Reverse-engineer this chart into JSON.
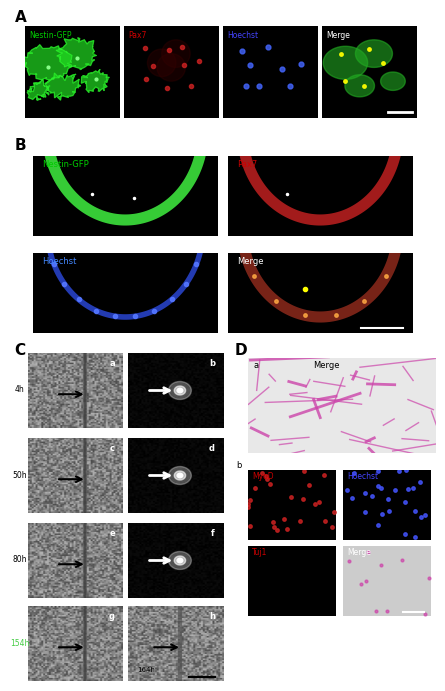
{
  "panel_A_labels": [
    "Nestin-GFP",
    "Pax7",
    "Hoechst",
    "Merge"
  ],
  "panel_A_colors": [
    "#00cc00",
    "#cc0000",
    "#4444ff",
    "#ffffff"
  ],
  "panel_B_labels": [
    "Nestin-GFP",
    "Pax7",
    "Hoechst",
    "Merge"
  ],
  "panel_B_colors": [
    "#00cc00",
    "#cc0000",
    "#4488ff",
    "#ffffff"
  ],
  "panel_C_times": [
    "4h",
    "50h",
    "80h",
    "154h"
  ],
  "panel_D_sub_labels": [
    "MyoD",
    "Hoechst",
    "Tuj1",
    "Merge"
  ],
  "panel_D_sub_colors": [
    "#cc0000",
    "#4444ff",
    "#cc0000",
    "#ffffff"
  ],
  "label_A": "A",
  "label_B": "B",
  "label_C": "C",
  "label_D": "D",
  "fig_width": 4.3,
  "fig_height": 6.97
}
